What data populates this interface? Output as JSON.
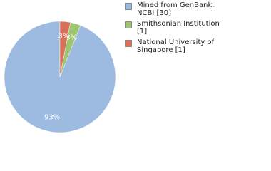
{
  "chart_data": {
    "type": "pie",
    "series": [
      {
        "name": "Mined from GenBank, NCBI [30]",
        "color": "#9dbbe0",
        "values": [
          93
        ],
        "value_labels": [
          "93%"
        ]
      },
      {
        "name": "Smithsonian Institution [1]",
        "color": "#9dc46f",
        "values": [
          3
        ],
        "value_labels": [
          "3%"
        ]
      },
      {
        "name": "National University of Singapore [1]",
        "color": "#d9705a",
        "values": [
          3
        ],
        "value_labels": [
          "3%"
        ]
      }
    ],
    "legend": "top-right"
  }
}
